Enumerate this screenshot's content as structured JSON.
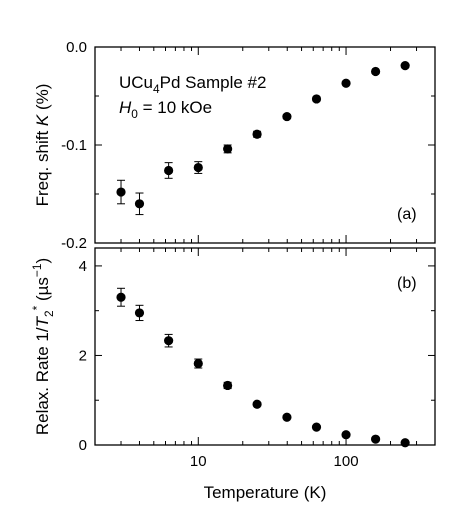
{
  "chart_data": [
    {
      "panel": "(a)",
      "type": "scatter",
      "x_scale": "log",
      "annotation_lines": [
        {
          "parts": [
            {
              "t": "UCu"
            },
            {
              "t": "4",
              "sub": true
            },
            {
              "t": "Pd  Sample #2"
            }
          ]
        },
        {
          "parts": [
            {
              "t": "H",
              "italic": true
            },
            {
              "t": "0",
              "sub": true
            },
            {
              "t": " = 10 kOe"
            }
          ]
        }
      ],
      "ylabel_parts": [
        {
          "t": "Freq. shift "
        },
        {
          "t": "K",
          "italic": true
        },
        {
          "t": " (%)"
        }
      ],
      "ylim": [
        -0.2,
        0.0
      ],
      "yticks": [
        0.0,
        -0.1,
        -0.2
      ],
      "ytick_labels": [
        "0.0",
        "-0.1",
        "-0.2"
      ],
      "points": [
        {
          "x": 3.0,
          "y": -0.148,
          "err": 0.012
        },
        {
          "x": 4.0,
          "y": -0.16,
          "err": 0.011
        },
        {
          "x": 6.3,
          "y": -0.126,
          "err": 0.008
        },
        {
          "x": 10.0,
          "y": -0.123,
          "err": 0.006
        },
        {
          "x": 15.8,
          "y": -0.104,
          "err": 0.004
        },
        {
          "x": 25.0,
          "y": -0.089,
          "err": 0.003
        },
        {
          "x": 39.8,
          "y": -0.071,
          "err": 0.002
        },
        {
          "x": 63.1,
          "y": -0.053,
          "err": 0.002
        },
        {
          "x": 100.0,
          "y": -0.037,
          "err": 0.001
        },
        {
          "x": 158.5,
          "y": -0.025,
          "err": 0.001
        },
        {
          "x": 251.2,
          "y": -0.019,
          "err": 0.001
        }
      ]
    },
    {
      "panel": "(b)",
      "type": "scatter",
      "x_scale": "log",
      "ylabel_parts": [
        {
          "t": "Relax. Rate 1/"
        },
        {
          "t": "T",
          "italic": true
        },
        {
          "t": "2",
          "sub": true
        },
        {
          "t": "*",
          "sup": true
        },
        {
          "t": "  (µs"
        },
        {
          "t": "−1",
          "sup": true
        },
        {
          "t": ")"
        }
      ],
      "ylim": [
        0,
        4.4
      ],
      "yticks": [
        0,
        2,
        4
      ],
      "ytick_labels": [
        "0",
        "2",
        "4"
      ],
      "points": [
        {
          "x": 3.0,
          "y": 3.3,
          "err": 0.2
        },
        {
          "x": 4.0,
          "y": 2.95,
          "err": 0.17
        },
        {
          "x": 6.3,
          "y": 2.33,
          "err": 0.14
        },
        {
          "x": 10.0,
          "y": 1.82,
          "err": 0.1
        },
        {
          "x": 15.8,
          "y": 1.33,
          "err": 0.07
        },
        {
          "x": 25.0,
          "y": 0.91,
          "err": 0.04
        },
        {
          "x": 39.8,
          "y": 0.62,
          "err": 0.03
        },
        {
          "x": 63.1,
          "y": 0.4,
          "err": 0.02
        },
        {
          "x": 100.0,
          "y": 0.23,
          "err": 0.02
        },
        {
          "x": 158.5,
          "y": 0.13,
          "err": 0.02
        },
        {
          "x": 251.2,
          "y": 0.05,
          "err": 0.02
        }
      ]
    }
  ],
  "x_axis": {
    "label": "Temperature  (K)",
    "xlim": [
      2,
      400
    ],
    "major_ticks": [
      10,
      100
    ],
    "major_tick_labels": [
      "10",
      "100"
    ]
  }
}
